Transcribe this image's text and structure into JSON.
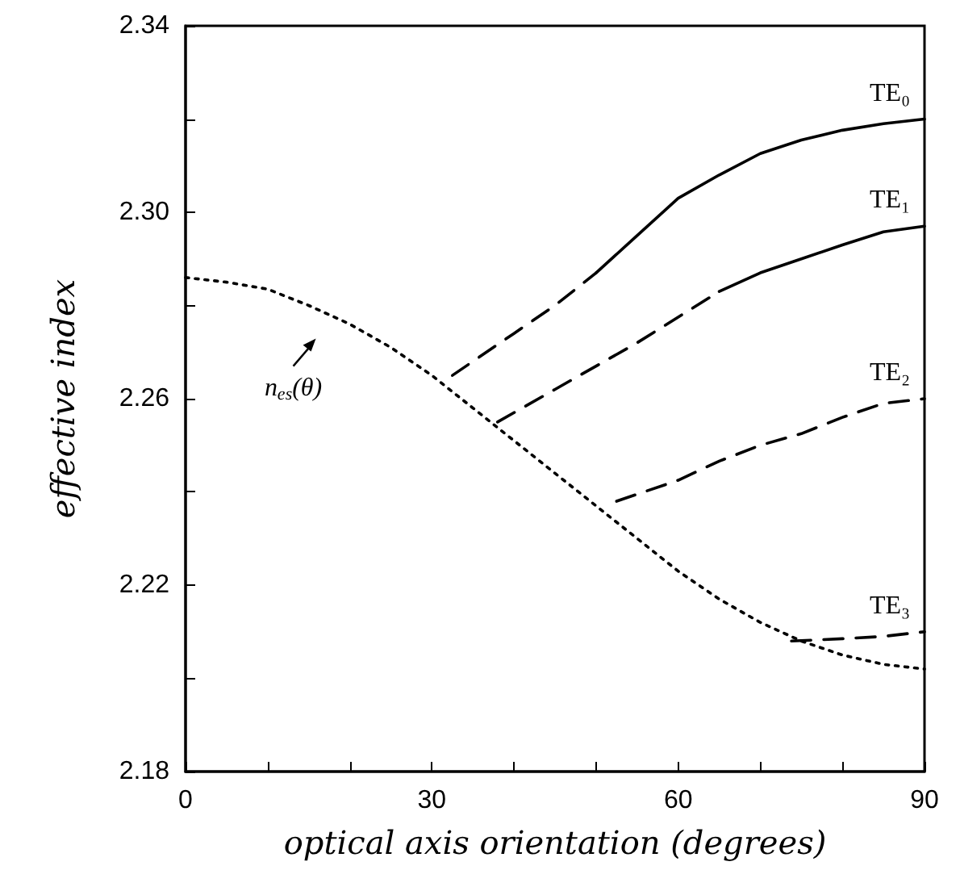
{
  "chart_data": {
    "type": "line",
    "xlabel": "optical axis orientation (degrees)",
    "ylabel": "effective index",
    "xlim": [
      0,
      90
    ],
    "xticks": [
      0,
      {
        "value": 10,
        "label": null
      },
      {
        "value": 20,
        "label": null
      },
      30,
      {
        "value": 40,
        "label": null
      },
      {
        "value": 50,
        "label": null
      },
      60,
      {
        "value": 70,
        "label": null
      },
      {
        "value": 80,
        "label": null
      },
      90
    ],
    "ylim": [
      2.18,
      2.34
    ],
    "yticks": [
      2.18,
      {
        "value": 2.2,
        "label": null
      },
      2.22,
      {
        "value": 2.24,
        "label": null
      },
      2.26,
      {
        "value": 2.28,
        "label": null
      },
      {
        "value": 2.3,
        "label": "2.30"
      },
      {
        "value": 2.32,
        "label": null
      },
      2.34
    ],
    "grid": false,
    "legend": false,
    "marker": "none",
    "series": [
      {
        "color": "#000000",
        "line_style": "dotted",
        "x": [
          0,
          5,
          10,
          15,
          20,
          25,
          30,
          35,
          40,
          45,
          50,
          55,
          60,
          65,
          70,
          75,
          80,
          85,
          90
        ],
        "values": [
          2.286,
          2.285,
          2.2835,
          2.28,
          2.276,
          2.271,
          2.265,
          2.258,
          2.251,
          2.244,
          2.237,
          2.23,
          2.223,
          2.217,
          2.212,
          2.208,
          2.205,
          2.203,
          2.202
        ]
      },
      {
        "color": "#000000",
        "line_style": "dashed",
        "x": [
          32.5,
          40,
          45,
          50
        ],
        "values": [
          2.265,
          2.274,
          2.28,
          2.287
        ]
      },
      {
        "name": "TE₀",
        "color": "#000000",
        "line_style": "solid",
        "x": [
          50,
          55,
          60,
          65,
          70,
          75,
          80,
          85,
          90
        ],
        "values": [
          2.287,
          2.295,
          2.303,
          2.308,
          2.3126,
          2.3155,
          2.3176,
          2.319,
          2.32
        ]
      },
      {
        "color": "#000000",
        "line_style": "dashed",
        "x": [
          38,
          45,
          55,
          65
        ],
        "values": [
          2.255,
          2.262,
          2.272,
          2.283
        ]
      },
      {
        "name": "TE₁",
        "color": "#000000",
        "line_style": "solid",
        "x": [
          65,
          70,
          75,
          80,
          85,
          90
        ],
        "values": [
          2.283,
          2.287,
          2.29,
          2.293,
          2.2958,
          2.297
        ]
      },
      {
        "name": "TE₂",
        "color": "#000000",
        "line_style": "dashed",
        "x": [
          52.5,
          60,
          65,
          70,
          75,
          80,
          85,
          90
        ],
        "values": [
          2.238,
          2.2425,
          2.2466,
          2.25,
          2.2525,
          2.256,
          2.259,
          2.26
        ]
      },
      {
        "name": "TE₃",
        "color": "#000000",
        "line_style": "dashed",
        "x": [
          73.8,
          80,
          85,
          90
        ],
        "values": [
          2.208,
          2.2085,
          2.209,
          2.21
        ]
      }
    ],
    "annotations": [
      {
        "text": "n$_{es}$(θ)",
        "x": 20,
        "y": 2.276
      }
    ]
  }
}
